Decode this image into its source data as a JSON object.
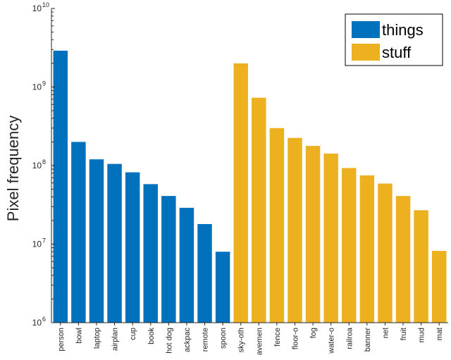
{
  "chart_data": {
    "type": "bar",
    "title": "",
    "xlabel": "",
    "ylabel": "Pixel frequency",
    "yscale": "log",
    "ylim": [
      1000000,
      10000000000
    ],
    "yticks": [
      {
        "value": 1000000,
        "base": "10",
        "exp": "6"
      },
      {
        "value": 10000000,
        "base": "10",
        "exp": "7"
      },
      {
        "value": 100000000,
        "base": "10",
        "exp": "8"
      },
      {
        "value": 1000000000,
        "base": "10",
        "exp": "9"
      },
      {
        "value": 10000000000,
        "base": "10",
        "exp": "10"
      }
    ],
    "legend": {
      "position": "top-right"
    },
    "grid": false,
    "series": [
      {
        "name": "things",
        "color": "#0072BD",
        "categories": [
          "person",
          "bowl",
          "laptop",
          "airplan",
          "cup",
          "book",
          "hot dog",
          "ackpac",
          "remote",
          "spoon"
        ],
        "values": [
          2900000000,
          200000000,
          120000000,
          105000000,
          82000000,
          58000000,
          41000000,
          29000000,
          18000000,
          8000000
        ]
      },
      {
        "name": "stuff",
        "color": "#EDB120",
        "categories": [
          "sky-oth",
          "avemen",
          "fence",
          "floor-o",
          "fog",
          "water-o",
          "railroa",
          "banner",
          "net",
          "fruit",
          "mud",
          "mat"
        ],
        "values": [
          2000000000,
          730000000,
          300000000,
          225000000,
          178000000,
          142000000,
          93000000,
          75000000,
          59000000,
          41000000,
          27000000,
          8200000
        ]
      }
    ]
  }
}
